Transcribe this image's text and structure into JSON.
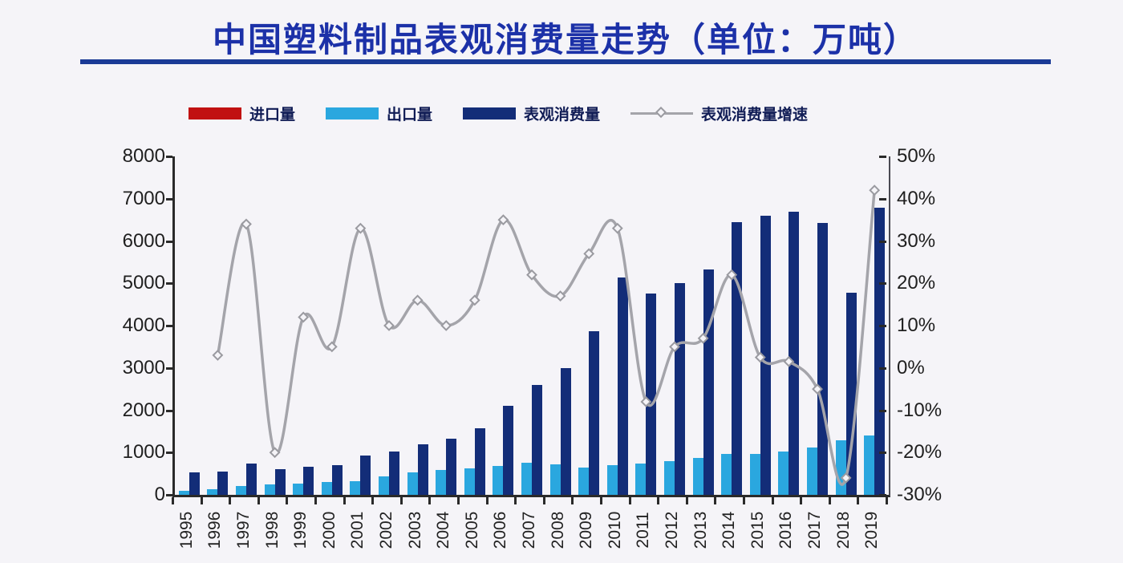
{
  "title": {
    "text": "中国塑料制品表观消费量走势（单位：万吨）"
  },
  "legend": [
    {
      "label": "进口量",
      "color": "#c11111",
      "type": "bar"
    },
    {
      "label": "出口量",
      "color": "#2aa7df",
      "type": "bar"
    },
    {
      "label": "表观消费量",
      "color": "#132d78",
      "type": "bar"
    },
    {
      "label": "表观消费量增速",
      "color": "#a4a4aa",
      "type": "line"
    }
  ],
  "colors": {
    "title": "#1c31a8",
    "title_rule": "#1a3a96",
    "import_bar": "#c11111",
    "export_bar": "#2aa7df",
    "consumption_bar": "#132d78",
    "growth_line": "#a4a4aa",
    "axis_text": "#1f1f1f",
    "background": "#f5f4f8"
  },
  "chart_data": {
    "type": "bar",
    "subtype": "grouped bars with secondary-axis line",
    "title": "中国塑料制品表观消费量走势（单位：万吨）",
    "categories": [
      "1995",
      "1996",
      "1997",
      "1998",
      "1999",
      "2000",
      "2001",
      "2002",
      "2003",
      "2004",
      "2005",
      "2006",
      "2007",
      "2008",
      "2009",
      "2010",
      "2011",
      "2012",
      "2013",
      "2014",
      "2015",
      "2016",
      "2017",
      "2018",
      "2019"
    ],
    "series": [
      {
        "name": "进口量",
        "type": "bar",
        "axis": "left",
        "color": "#c11111",
        "values": null,
        "note": "red import bars are not visibly distinguishable in the chart (≈0 at this scale)"
      },
      {
        "name": "出口量",
        "type": "bar",
        "axis": "left",
        "color": "#2aa7df",
        "values": [
          100,
          140,
          200,
          240,
          270,
          300,
          330,
          430,
          530,
          590,
          630,
          690,
          760,
          720,
          640,
          710,
          740,
          800,
          870,
          960,
          960,
          1030,
          1110,
          1280,
          1410
        ]
      },
      {
        "name": "表观消费量",
        "type": "bar",
        "axis": "left",
        "color": "#132d78",
        "values": [
          530,
          550,
          740,
          600,
          670,
          700,
          930,
          1020,
          1200,
          1330,
          1570,
          2100,
          2600,
          3000,
          3870,
          5140,
          4750,
          5000,
          5330,
          6450,
          6600,
          6700,
          6430,
          4780,
          6780
        ]
      },
      {
        "name": "表观消费量增速",
        "type": "line",
        "axis": "right",
        "color": "#a4a4aa",
        "unit": "%",
        "values": [
          null,
          3,
          34,
          -20,
          12,
          5,
          33,
          10,
          16,
          10,
          16,
          35,
          22,
          17,
          27,
          33,
          -8,
          5,
          7,
          22,
          2.5,
          1.5,
          -5,
          -26,
          42
        ]
      }
    ],
    "left_axis": {
      "min": 0,
      "max": 8000,
      "step": 1000,
      "tick_labels": [
        "8000",
        "7000",
        "6000",
        "5000",
        "4000",
        "3000",
        "2000",
        "1000",
        "0"
      ]
    },
    "right_axis": {
      "min": -30,
      "max": 50,
      "step": 10,
      "tick_labels": [
        "50%",
        "40%",
        "30%",
        "20%",
        "10%",
        "0%",
        "-10%",
        "-20%",
        "-30%"
      ]
    },
    "grid": false,
    "legend_position": "top"
  }
}
